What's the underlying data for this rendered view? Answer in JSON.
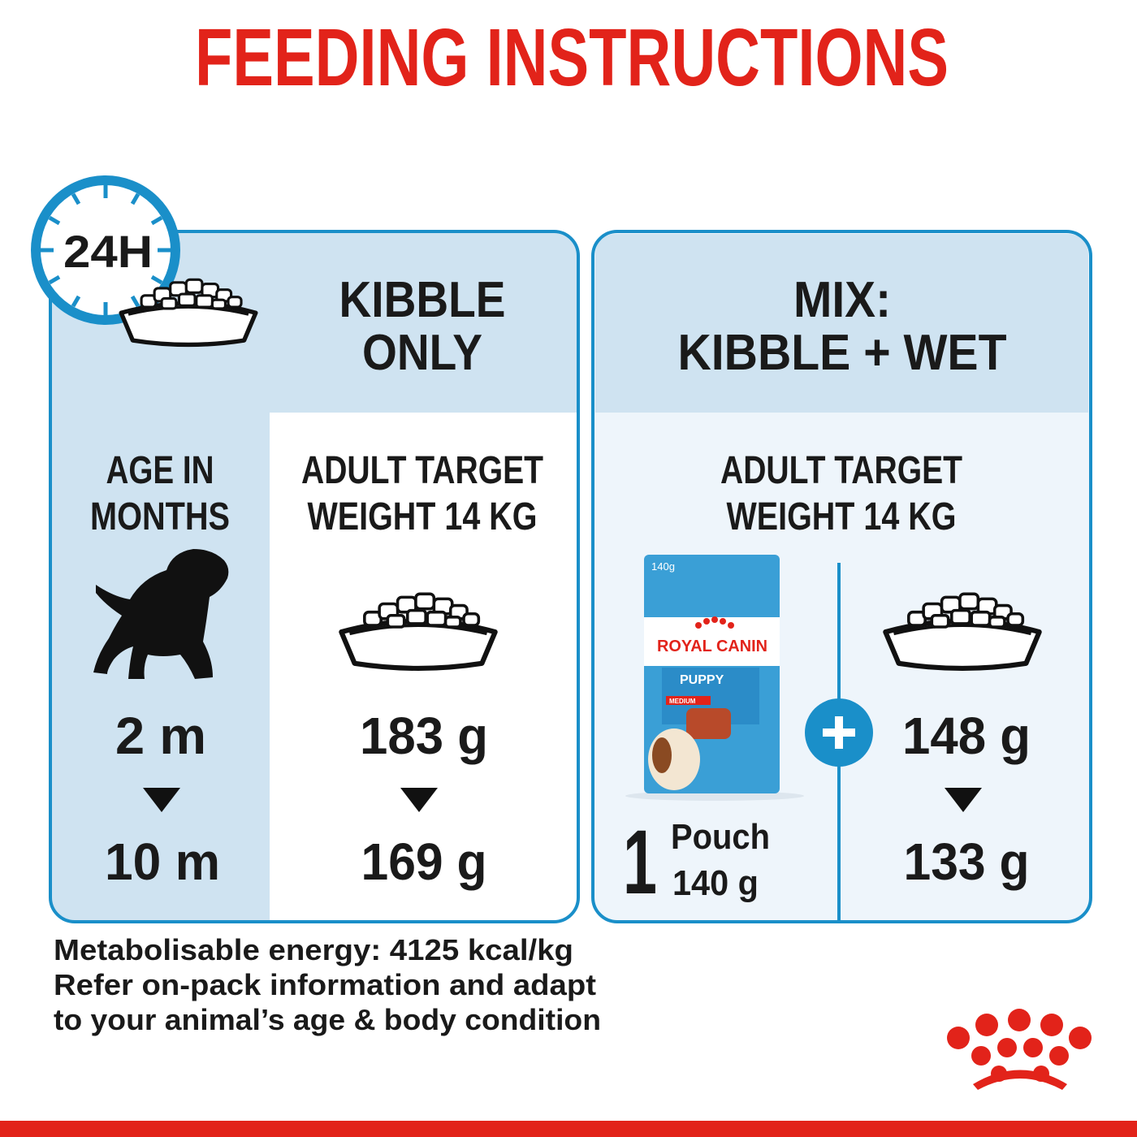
{
  "header": {
    "title": "FEEDING INSTRUCTIONS"
  },
  "badge": "24H",
  "kibble_panel": {
    "heading": [
      "KIBBLE",
      "ONLY"
    ],
    "age_header": [
      "AGE IN",
      "MONTHS"
    ],
    "ages": [
      "2 m",
      "10 m"
    ],
    "target_header": [
      "ADULT TARGET",
      "WEIGHT 14 KG"
    ],
    "amounts": [
      "183 g",
      "169 g"
    ]
  },
  "mix_panel": {
    "heading": [
      "MIX:",
      "KIBBLE + WET"
    ],
    "target_header": [
      "ADULT TARGET",
      "WEIGHT 14 KG"
    ],
    "pouch": {
      "count": "1",
      "unit": "Pouch",
      "weight": "140 g",
      "label_weight": "140g",
      "brand": "ROYAL CANIN",
      "product": "PUPPY",
      "size": "MEDIUM"
    },
    "amounts": [
      "148 g",
      "133 g"
    ]
  },
  "footer": [
    "Metabolisable energy: 4125 kcal/kg",
    "Refer on-pack information and adapt",
    "to your animal’s age & body condition"
  ]
}
